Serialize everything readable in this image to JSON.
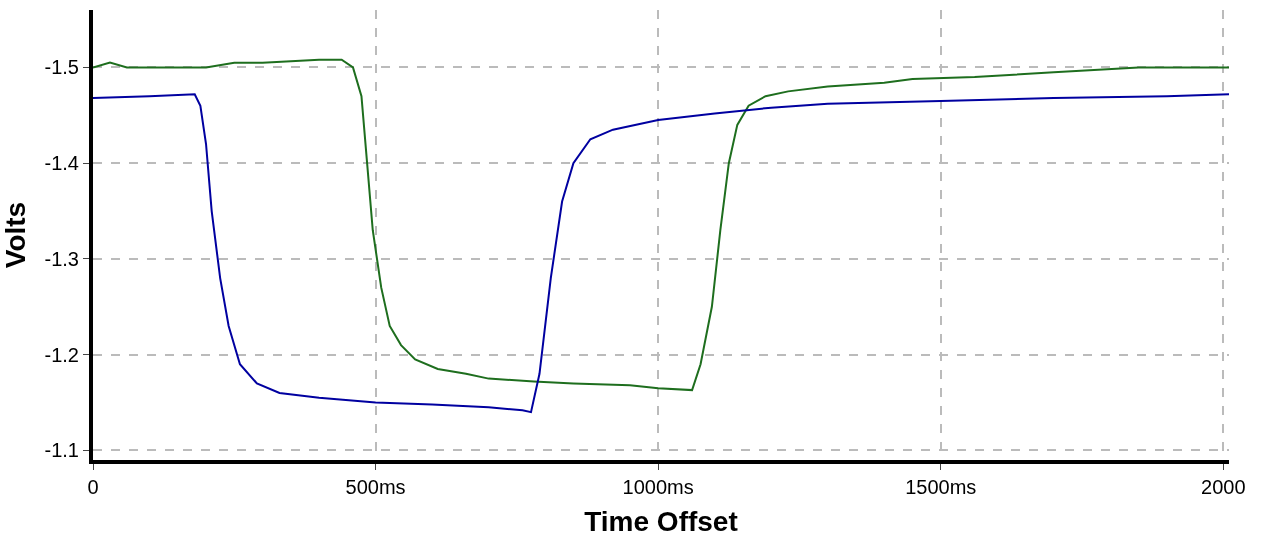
{
  "chart_data": {
    "type": "line",
    "xlabel": "Time Offset",
    "ylabel": "Volts",
    "xlim": [
      0,
      2010
    ],
    "ylim": [
      -1.09,
      -1.56
    ],
    "xticks": [
      0,
      {
        "value": 500,
        "label": "500ms"
      },
      {
        "value": 1000,
        "label": "1000ms"
      },
      {
        "value": 1500,
        "label": "1500ms"
      },
      2000
    ],
    "yticks": [
      -1.5,
      -1.4,
      -1.3,
      -1.2,
      -1.1
    ],
    "grid": true,
    "marker": "none",
    "line_style": "solid",
    "series": [
      {
        "color": "#1e6e1e",
        "x": [
          0,
          30,
          60,
          200,
          250,
          300,
          400,
          440,
          460,
          475,
          485,
          495,
          510,
          525,
          545,
          570,
          610,
          660,
          700,
          780,
          850,
          950,
          1000,
          1060,
          1075,
          1095,
          1110,
          1125,
          1140,
          1160,
          1190,
          1230,
          1300,
          1400,
          1450,
          1560,
          1700,
          1850,
          2010
        ],
        "values": [
          -1.5,
          -1.505,
          -1.5,
          -1.5,
          -1.505,
          -1.505,
          -1.508,
          -1.508,
          -1.5,
          -1.47,
          -1.4,
          -1.33,
          -1.27,
          -1.23,
          -1.21,
          -1.195,
          -1.185,
          -1.18,
          -1.175,
          -1.172,
          -1.17,
          -1.168,
          -1.165,
          -1.163,
          -1.19,
          -1.25,
          -1.33,
          -1.4,
          -1.44,
          -1.46,
          -1.47,
          -1.475,
          -1.48,
          -1.484,
          -1.488,
          -1.49,
          -1.495,
          -1.5,
          -1.5
        ]
      },
      {
        "color": "#0000a0",
        "x": [
          0,
          100,
          180,
          190,
          200,
          210,
          225,
          240,
          260,
          290,
          330,
          400,
          500,
          600,
          700,
          760,
          775,
          790,
          810,
          830,
          850,
          880,
          920,
          1000,
          1100,
          1200,
          1300,
          1500,
          1700,
          1900,
          2010
        ],
        "values": [
          -1.468,
          -1.47,
          -1.472,
          -1.46,
          -1.42,
          -1.35,
          -1.28,
          -1.23,
          -1.19,
          -1.17,
          -1.16,
          -1.155,
          -1.15,
          -1.148,
          -1.145,
          -1.142,
          -1.14,
          -1.18,
          -1.28,
          -1.36,
          -1.4,
          -1.425,
          -1.435,
          -1.445,
          -1.452,
          -1.458,
          -1.462,
          -1.465,
          -1.468,
          -1.47,
          -1.472
        ]
      }
    ]
  }
}
